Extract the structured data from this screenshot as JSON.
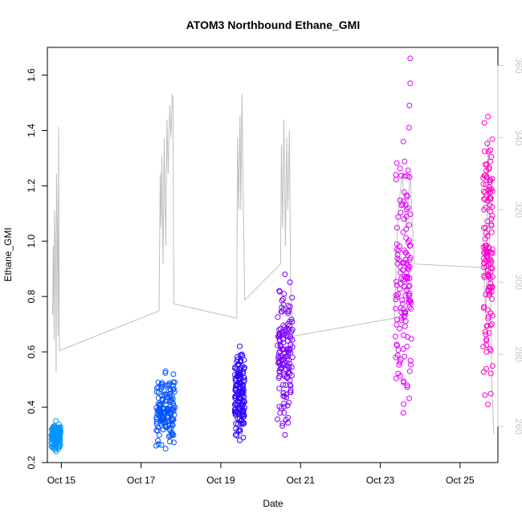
{
  "chart_data": {
    "type": "scatter",
    "title": "ATOM3 Northbound Ethane_GMI",
    "xlabel": "Date",
    "ylabel": "Ethane_GMI",
    "xlim": [
      14.65,
      25.95
    ],
    "ylim": [
      0.2,
      1.7
    ],
    "y2lim": [
      250,
      365
    ],
    "x_ticks": [
      {
        "value": 15,
        "label": "Oct 15"
      },
      {
        "value": 17,
        "label": "Oct 17"
      },
      {
        "value": 19,
        "label": "Oct 19"
      },
      {
        "value": 21,
        "label": "Oct 21"
      },
      {
        "value": 23,
        "label": "Oct 23"
      },
      {
        "value": 25,
        "label": "Oct 25"
      }
    ],
    "y_ticks": [
      0.2,
      0.4,
      0.6,
      0.8,
      1.0,
      1.2,
      1.4,
      1.6
    ],
    "y2_ticks": [
      260,
      280,
      300,
      320,
      340,
      360
    ],
    "grid": false,
    "line_series": {
      "color": "#bebebe",
      "points": [
        [
          14.78,
          291
        ],
        [
          14.8,
          310
        ],
        [
          14.82,
          284
        ],
        [
          14.83,
          320
        ],
        [
          14.85,
          310
        ],
        [
          14.87,
          275
        ],
        [
          14.88,
          330
        ],
        [
          14.9,
          314
        ],
        [
          14.92,
          285
        ],
        [
          14.93,
          343
        ],
        [
          14.95,
          281
        ],
        [
          17.45,
          292
        ],
        [
          17.48,
          330
        ],
        [
          17.5,
          315
        ],
        [
          17.52,
          335
        ],
        [
          17.55,
          305
        ],
        [
          17.58,
          340
        ],
        [
          17.62,
          310
        ],
        [
          17.65,
          345
        ],
        [
          17.68,
          330
        ],
        [
          17.72,
          349
        ],
        [
          17.75,
          340
        ],
        [
          17.78,
          352
        ],
        [
          17.8,
          351
        ],
        [
          17.82,
          294
        ],
        [
          19.4,
          290
        ],
        [
          19.42,
          340
        ],
        [
          19.45,
          320
        ],
        [
          19.48,
          346
        ],
        [
          19.5,
          320
        ],
        [
          19.53,
          352
        ],
        [
          19.56,
          325
        ],
        [
          19.6,
          295
        ],
        [
          20.5,
          305
        ],
        [
          20.52,
          338
        ],
        [
          20.55,
          315
        ],
        [
          20.58,
          345
        ],
        [
          20.62,
          310
        ],
        [
          20.65,
          340
        ],
        [
          20.68,
          320
        ],
        [
          20.72,
          342
        ],
        [
          20.75,
          300
        ],
        [
          20.8,
          285
        ],
        [
          23.35,
          290
        ],
        [
          23.45,
          320
        ],
        [
          23.55,
          330
        ],
        [
          23.65,
          315
        ],
        [
          23.75,
          330
        ],
        [
          23.85,
          305
        ],
        [
          25.6,
          304
        ],
        [
          25.65,
          290
        ],
        [
          25.7,
          340
        ],
        [
          25.75,
          310
        ],
        [
          25.8,
          270
        ],
        [
          25.85,
          258
        ]
      ]
    },
    "point_groups": [
      {
        "color": "#0096ff",
        "x": [
          14.75,
          14.98
        ],
        "y": [
          0.24,
          0.35
        ]
      },
      {
        "color": "#0050ff",
        "x": [
          17.38,
          17.85
        ],
        "y": [
          0.25,
          0.53
        ]
      },
      {
        "color": "#2a00ff",
        "x": [
          19.35,
          19.6
        ],
        "y": [
          0.28,
          0.62
        ]
      },
      {
        "color": "#7a00ff",
        "x": [
          20.42,
          20.8
        ],
        "y": [
          0.3,
          0.88
        ]
      },
      {
        "color": "#e000ff",
        "x": [
          23.38,
          23.78
        ],
        "y": [
          0.38,
          1.36
        ],
        "outliers": [
          [
            23.75,
            1.66
          ],
          [
            23.75,
            1.57
          ],
          [
            23.73,
            1.49
          ],
          [
            23.72,
            1.41
          ]
        ]
      },
      {
        "color": "#ff00c8",
        "x": [
          25.58,
          25.82
        ],
        "y": [
          0.41,
          1.45
        ]
      }
    ]
  }
}
